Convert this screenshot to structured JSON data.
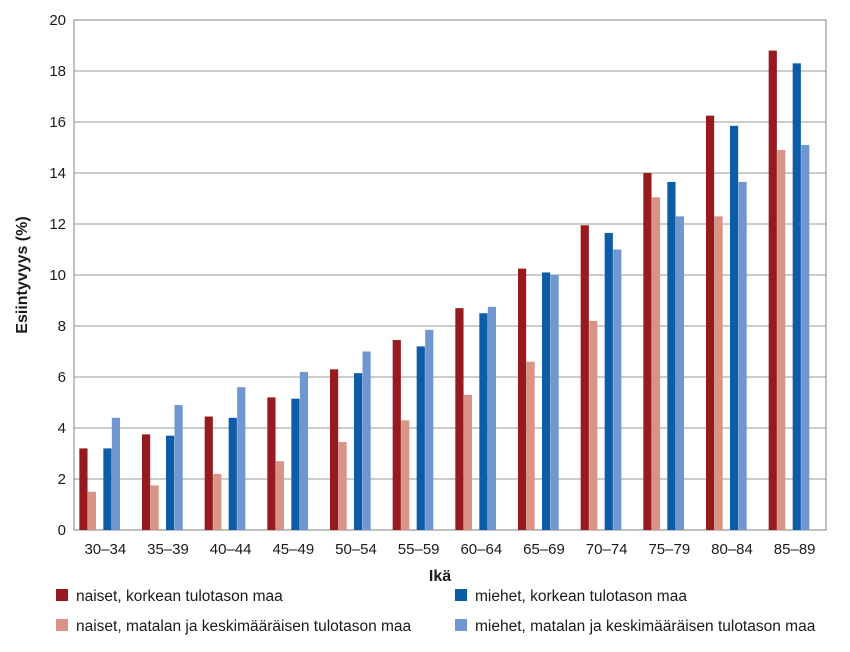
{
  "chart_data": {
    "type": "bar",
    "categories": [
      "30–34",
      "35–39",
      "40–44",
      "45–49",
      "50–54",
      "55–59",
      "60–64",
      "65–69",
      "70–74",
      "75–79",
      "80–84",
      "85–89"
    ],
    "series": [
      {
        "name": "naiset, korkean tulotason maa",
        "color": "#971b1e",
        "values": [
          3.2,
          3.75,
          4.45,
          5.2,
          6.3,
          7.45,
          8.7,
          10.25,
          11.95,
          14.0,
          16.25,
          18.8
        ]
      },
      {
        "name": "naiset, matalan ja keskimääräisen tulotason maa",
        "color": "#d99487",
        "values": [
          1.5,
          1.75,
          2.2,
          2.7,
          3.45,
          4.3,
          5.3,
          6.6,
          8.2,
          13.05,
          12.3,
          14.9
        ]
      },
      {
        "name": "miehet, korkean tulotason maa",
        "color": "#0d5ca8",
        "values": [
          3.2,
          3.7,
          4.4,
          5.15,
          6.15,
          7.2,
          8.5,
          10.1,
          11.65,
          13.65,
          15.85,
          18.3
        ]
      },
      {
        "name": "miehet, matalan ja keskimääräisen tulotason maa",
        "color": "#7197d0",
        "values": [
          4.4,
          4.9,
          5.6,
          6.2,
          7.0,
          7.85,
          8.75,
          10.0,
          11.0,
          12.3,
          13.65,
          15.1
        ]
      }
    ],
    "xlabel": "Ikä",
    "ylabel": "Esiintyvyys (%)",
    "ylim": [
      0,
      20
    ],
    "yticks": [
      "0",
      "2",
      "4",
      "6",
      "8",
      "10",
      "12",
      "14",
      "16",
      "18",
      "20"
    ],
    "grid": true,
    "legend_position": "bottom"
  }
}
